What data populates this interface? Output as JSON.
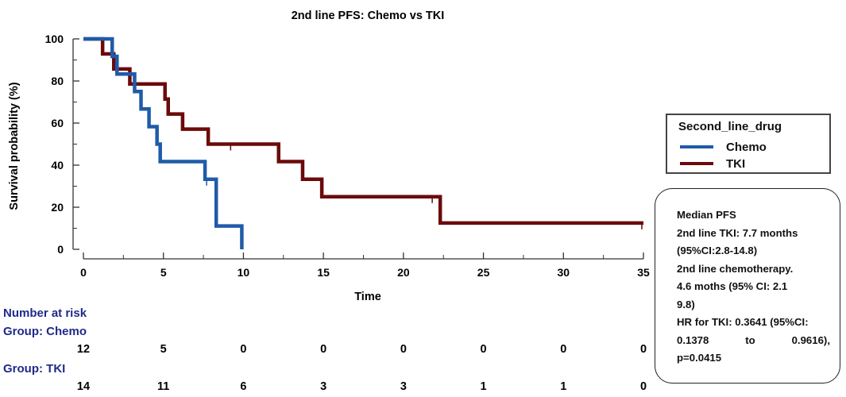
{
  "chart_data": {
    "type": "kaplan-meier step",
    "title": "2nd line PFS: Chemo vs TKI",
    "xlabel": "Time",
    "ylabel": "Survival probability (%)",
    "xlim": [
      0,
      35
    ],
    "ylim": [
      0,
      100
    ],
    "xticks": [
      0,
      5,
      10,
      15,
      20,
      25,
      30,
      35
    ],
    "yticks": [
      0,
      20,
      40,
      60,
      80,
      100
    ],
    "legend_position": "right",
    "series": [
      {
        "name": "Chemo",
        "color": "#1f5ba8",
        "x": [
          0,
          1.8,
          2.1,
          3.2,
          3.6,
          4.1,
          4.6,
          4.8,
          7.6,
          8.3,
          9.9
        ],
        "y": [
          100,
          91.7,
          83.3,
          75,
          66.7,
          58.3,
          50,
          41.7,
          33.3,
          11.1,
          0
        ],
        "censor_x": [
          7.7
        ],
        "censor_y": [
          33.3
        ]
      },
      {
        "name": "TKI",
        "color": "#6b0a0a",
        "x": [
          0,
          1.2,
          1.9,
          2.1,
          2.9,
          3.1,
          5.1,
          5.3,
          6.2,
          7.8,
          12.2,
          13.7,
          14.9,
          22.3,
          35
        ],
        "y": [
          100,
          92.9,
          85.7,
          85.7,
          78.6,
          78.6,
          71.4,
          64.3,
          57.1,
          50,
          41.7,
          33.3,
          25,
          12.5,
          12.5
        ],
        "censor_x": [
          9.2,
          21.8,
          34.9
        ],
        "censor_y": [
          50,
          25,
          12.5
        ]
      }
    ]
  },
  "legend": {
    "title": "Second_line_drug",
    "items": [
      {
        "label": "Chemo",
        "color": "#1f5ba8"
      },
      {
        "label": "TKI",
        "color": "#6b0a0a"
      }
    ]
  },
  "risk_table": {
    "title": "Number at risk",
    "groups": [
      {
        "label": "Group: Chemo",
        "counts": [
          "12",
          "5",
          "0",
          "0",
          "0",
          "0",
          "0",
          "0"
        ]
      },
      {
        "label": "Group: TKI",
        "counts": [
          "14",
          "11",
          "6",
          "3",
          "3",
          "1",
          "1",
          "0"
        ]
      }
    ]
  },
  "annotation": {
    "heading": "Median PFS",
    "tki_line1": "2nd line TKI: 7.7 months",
    "tki_line2": "(95%CI:2.8-14.8)",
    "chemo_line1": "2nd line chemotherapy.",
    "chemo_line2": "4.6 moths (95% CI: 2.1",
    "chemo_line3": "9.8)",
    "hr_line1": "HR for TKI: 0.3641 (95%CI:",
    "hr_line2": "0.1378 to 0.9616),",
    "hr_line3": "p=0.0415"
  }
}
